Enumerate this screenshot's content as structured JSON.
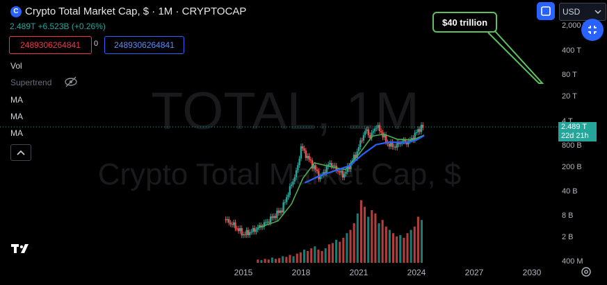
{
  "header": {
    "title": "Crypto Total Market Cap, $ · 1M · CRYPTOCAP",
    "value_line": "2.489T +6.523B (+0.26%)",
    "box_red": "2489306264841",
    "box_mid": "0",
    "box_blue": "2489306264841"
  },
  "legend": {
    "vol": "Vol",
    "supertrend": "Supertrend",
    "ma1": "MA",
    "ma2": "MA",
    "ma3": "MA"
  },
  "toolbar": {
    "currency": "USD"
  },
  "price_tag": {
    "value": "2.489 T",
    "countdown": "22d 21h"
  },
  "annotation": {
    "text": "$40 trillion"
  },
  "watermark": {
    "symbol": "TOTAL, 1M",
    "name": "Crypto Total Market Cap, $"
  },
  "colors": {
    "up": "#26a69a",
    "down": "#ef5350",
    "ma_green": "#4caf50",
    "ma_blue": "#2962ff",
    "callout": "#5cc35c",
    "accent": "#2962ff"
  },
  "chart_data": {
    "type": "candlestick",
    "title": "Crypto Total Market Cap, $ · 1M · CRYPTOCAP",
    "y_scale": "log",
    "y_ticks": [
      "2,000 T",
      "400 T",
      "80 T",
      "20 T",
      "4 T",
      "800 B",
      "200 B",
      "40 B",
      "8 B",
      "2 B",
      "400 M"
    ],
    "x_ticks": [
      "2015",
      "2018",
      "2021",
      "2024",
      "2027",
      "2030"
    ],
    "current_value": "2.489 T",
    "price_points": [
      {
        "x": 2014.0,
        "y_b": 10
      },
      {
        "x": 2014.5,
        "y_b": 7
      },
      {
        "x": 2015.0,
        "y_b": 4
      },
      {
        "x": 2015.5,
        "y_b": 5
      },
      {
        "x": 2016.0,
        "y_b": 7
      },
      {
        "x": 2016.5,
        "y_b": 11
      },
      {
        "x": 2017.0,
        "y_b": 18
      },
      {
        "x": 2017.4,
        "y_b": 60
      },
      {
        "x": 2017.8,
        "y_b": 200
      },
      {
        "x": 2018.0,
        "y_b": 800
      },
      {
        "x": 2018.3,
        "y_b": 450
      },
      {
        "x": 2018.7,
        "y_b": 220
      },
      {
        "x": 2019.0,
        "y_b": 120
      },
      {
        "x": 2019.5,
        "y_b": 300
      },
      {
        "x": 2019.9,
        "y_b": 190
      },
      {
        "x": 2020.2,
        "y_b": 140
      },
      {
        "x": 2020.5,
        "y_b": 250
      },
      {
        "x": 2020.9,
        "y_b": 560
      },
      {
        "x": 2021.2,
        "y_b": 1500
      },
      {
        "x": 2021.4,
        "y_b": 2200
      },
      {
        "x": 2021.6,
        "y_b": 1400
      },
      {
        "x": 2021.9,
        "y_b": 2900
      },
      {
        "x": 2022.2,
        "y_b": 1800
      },
      {
        "x": 2022.5,
        "y_b": 950
      },
      {
        "x": 2022.9,
        "y_b": 800
      },
      {
        "x": 2023.2,
        "y_b": 1100
      },
      {
        "x": 2023.6,
        "y_b": 1050
      },
      {
        "x": 2023.9,
        "y_b": 1600
      },
      {
        "x": 2024.2,
        "y_b": 2600
      },
      {
        "x": 2024.4,
        "y_b": 2489
      }
    ],
    "ma_green": [
      {
        "x": 2015.8,
        "y_b": 6
      },
      {
        "x": 2016.8,
        "y_b": 9
      },
      {
        "x": 2017.5,
        "y_b": 25
      },
      {
        "x": 2018.1,
        "y_b": 120
      },
      {
        "x": 2018.7,
        "y_b": 300
      },
      {
        "x": 2019.5,
        "y_b": 240
      },
      {
        "x": 2020.3,
        "y_b": 200
      },
      {
        "x": 2021.0,
        "y_b": 500
      },
      {
        "x": 2021.7,
        "y_b": 1500
      },
      {
        "x": 2022.3,
        "y_b": 1700
      },
      {
        "x": 2023.0,
        "y_b": 1250
      },
      {
        "x": 2023.8,
        "y_b": 1200
      },
      {
        "x": 2024.4,
        "y_b": 1600
      }
    ],
    "ma_blue": [
      {
        "x": 2018.2,
        "y_b": 90
      },
      {
        "x": 2019.0,
        "y_b": 140
      },
      {
        "x": 2019.8,
        "y_b": 190
      },
      {
        "x": 2020.5,
        "y_b": 250
      },
      {
        "x": 2021.2,
        "y_b": 500
      },
      {
        "x": 2021.9,
        "y_b": 900
      },
      {
        "x": 2022.6,
        "y_b": 1050
      },
      {
        "x": 2023.4,
        "y_b": 1000
      },
      {
        "x": 2024.0,
        "y_b": 1200
      },
      {
        "x": 2024.4,
        "y_b": 1550
      }
    ],
    "volume_relative": [
      0.05,
      0.04,
      0.06,
      0.05,
      0.08,
      0.06,
      0.07,
      0.1,
      0.09,
      0.12,
      0.1,
      0.14,
      0.16,
      0.2,
      0.18,
      0.22,
      0.25,
      0.2,
      0.18,
      0.22,
      0.28,
      0.3,
      0.35,
      0.32,
      0.38,
      0.45,
      0.5,
      0.6,
      0.75,
      0.95,
      0.85,
      0.7,
      0.8,
      0.75,
      0.6,
      0.65,
      0.55,
      0.5,
      0.45,
      0.4,
      0.42,
      0.38,
      0.45,
      0.5,
      0.55,
      0.7,
      0.65
    ]
  }
}
